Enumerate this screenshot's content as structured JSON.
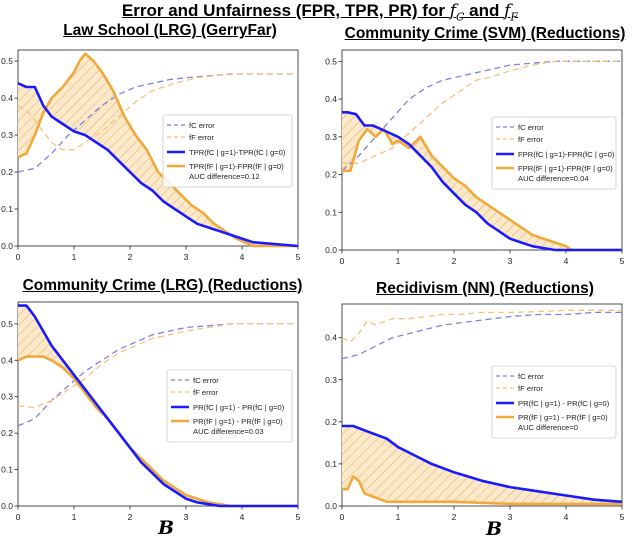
{
  "figure": {
    "title": "Error and Unfairness (FPR, TPR, PR) for",
    "title_f_c": "f",
    "title_c_sub": "C",
    "title_and": "and",
    "title_f_f": "f",
    "title_f_sub": "F",
    "xvar_label": "B"
  },
  "colors": {
    "blue": "#1a1aff",
    "blue_dashed": "#8080e0",
    "orange": "#f0a93a",
    "orange_dashed": "#f5c27a",
    "fill": "#fde8c8"
  },
  "chart_data": [
    {
      "type": "line",
      "title": "Law School (LRG) (GerryFar)",
      "xlim": [
        0,
        5
      ],
      "ylim": [
        0,
        0.53
      ],
      "xticks": [
        "0",
        "1",
        "2",
        "3",
        "4",
        "5"
      ],
      "yticks": [
        "0.0",
        "0.1",
        "0.2",
        "0.3",
        "0.4",
        "0.5"
      ],
      "ytick_values": [
        0,
        0.1,
        0.2,
        0.3,
        0.4,
        0.5
      ],
      "legend": [
        "fC error",
        "fF error",
        "TPR(fC | g=1)-TPR(fC | g=0)",
        "TPR(fF | g=1)-FPR(fF | g=0)"
      ],
      "auc_text": "AUC difference=0.12",
      "series": [
        {
          "name": "fC error",
          "style": "blue_dashed",
          "x": [
            0,
            0.3,
            0.6,
            0.9,
            1.2,
            1.5,
            1.8,
            2.1,
            2.4,
            2.7,
            3.0,
            3.4,
            3.8,
            4.2,
            5.0
          ],
          "y": [
            0.2,
            0.21,
            0.25,
            0.3,
            0.34,
            0.38,
            0.41,
            0.43,
            0.44,
            0.45,
            0.455,
            0.46,
            0.465,
            0.465,
            0.465
          ]
        },
        {
          "name": "fF error",
          "style": "orange_dashed",
          "x": [
            0,
            0.2,
            0.4,
            0.6,
            0.8,
            1.0,
            1.2,
            1.5,
            1.8,
            2.1,
            2.4,
            2.8,
            3.2,
            3.6,
            4.0,
            5.0
          ],
          "y": [
            0.38,
            0.36,
            0.32,
            0.28,
            0.26,
            0.26,
            0.28,
            0.31,
            0.35,
            0.39,
            0.42,
            0.44,
            0.455,
            0.462,
            0.465,
            0.465
          ]
        },
        {
          "name": "TPR(fC | g=1)-TPR(fC | g=0)",
          "style": "blue",
          "x": [
            0,
            0.15,
            0.3,
            0.45,
            0.6,
            0.8,
            1.0,
            1.2,
            1.4,
            1.6,
            1.8,
            2.0,
            2.2,
            2.4,
            2.6,
            2.8,
            3.0,
            3.2,
            3.4,
            3.6,
            3.8,
            4.0,
            4.2,
            5.0
          ],
          "y": [
            0.44,
            0.43,
            0.43,
            0.38,
            0.35,
            0.33,
            0.31,
            0.3,
            0.28,
            0.26,
            0.23,
            0.2,
            0.17,
            0.15,
            0.12,
            0.1,
            0.08,
            0.06,
            0.05,
            0.04,
            0.03,
            0.02,
            0.01,
            0.0
          ]
        },
        {
          "name": "TPR(fF | g=1)-FPR(fF | g=0)",
          "style": "orange",
          "x": [
            0,
            0.15,
            0.3,
            0.45,
            0.6,
            0.8,
            1.0,
            1.1,
            1.2,
            1.35,
            1.5,
            1.7,
            1.9,
            2.1,
            2.3,
            2.5,
            2.7,
            2.9,
            3.1,
            3.3,
            3.5,
            3.7,
            3.9,
            4.2,
            5.0
          ],
          "y": [
            0.24,
            0.25,
            0.3,
            0.36,
            0.4,
            0.43,
            0.47,
            0.5,
            0.52,
            0.5,
            0.47,
            0.42,
            0.35,
            0.3,
            0.26,
            0.2,
            0.17,
            0.14,
            0.11,
            0.09,
            0.06,
            0.04,
            0.02,
            0.0,
            0.0
          ]
        }
      ]
    },
    {
      "type": "line",
      "title": "Community Crime (SVM) (Reductions)",
      "xlim": [
        0,
        5
      ],
      "ylim": [
        0,
        0.53
      ],
      "xticks": [
        "0",
        "1",
        "2",
        "3",
        "4",
        "5"
      ],
      "yticks": [
        "0.0",
        "0.1",
        "0.2",
        "0.3",
        "0.4",
        "0.5"
      ],
      "ytick_values": [
        0,
        0.1,
        0.2,
        0.3,
        0.4,
        0.5
      ],
      "legend": [
        "fC error",
        "fF error",
        "FPR(fC | g=1)-FPR(fC | g=0)",
        "FPR(fF | g=1)-FPR(fF | g=0)"
      ],
      "auc_text": "AUC difference=0.04",
      "series": [
        {
          "name": "fC error",
          "style": "blue_dashed",
          "x": [
            0,
            0.3,
            0.6,
            0.9,
            1.2,
            1.5,
            1.8,
            2.1,
            2.4,
            2.7,
            3.0,
            3.4,
            3.8,
            4.2,
            5.0
          ],
          "y": [
            0.21,
            0.25,
            0.3,
            0.35,
            0.4,
            0.43,
            0.45,
            0.46,
            0.47,
            0.48,
            0.49,
            0.495,
            0.5,
            0.5,
            0.5
          ]
        },
        {
          "name": "fF error",
          "style": "orange_dashed",
          "x": [
            0,
            0.3,
            0.6,
            0.9,
            1.2,
            1.5,
            1.8,
            2.1,
            2.4,
            2.7,
            3.0,
            3.4,
            3.8,
            4.2,
            5.0
          ],
          "y": [
            0.23,
            0.23,
            0.25,
            0.27,
            0.31,
            0.35,
            0.39,
            0.42,
            0.45,
            0.46,
            0.475,
            0.49,
            0.5,
            0.5,
            0.5
          ]
        },
        {
          "name": "FPR(fC | g=1)-FPR(fC | g=0)",
          "style": "blue",
          "x": [
            0,
            0.1,
            0.25,
            0.4,
            0.55,
            0.7,
            0.85,
            1.0,
            1.2,
            1.4,
            1.6,
            1.8,
            2.0,
            2.2,
            2.4,
            2.6,
            2.8,
            3.0,
            3.2,
            3.4,
            3.6,
            3.8,
            4.0,
            5.0
          ],
          "y": [
            0.365,
            0.365,
            0.36,
            0.33,
            0.33,
            0.32,
            0.31,
            0.3,
            0.28,
            0.25,
            0.22,
            0.18,
            0.15,
            0.12,
            0.1,
            0.07,
            0.05,
            0.03,
            0.02,
            0.01,
            0.005,
            0.0,
            0.0,
            0.0
          ]
        },
        {
          "name": "FPR(fF | g=1)-FPR(fF | g=0)",
          "style": "orange",
          "x": [
            0,
            0.15,
            0.3,
            0.45,
            0.6,
            0.75,
            0.9,
            1.0,
            1.2,
            1.4,
            1.6,
            1.8,
            2.0,
            2.2,
            2.4,
            2.6,
            2.8,
            3.0,
            3.2,
            3.4,
            3.6,
            3.8,
            4.0,
            4.1,
            5.0
          ],
          "y": [
            0.21,
            0.21,
            0.29,
            0.32,
            0.3,
            0.32,
            0.28,
            0.29,
            0.27,
            0.3,
            0.25,
            0.22,
            0.19,
            0.17,
            0.14,
            0.12,
            0.1,
            0.08,
            0.06,
            0.04,
            0.03,
            0.02,
            0.01,
            0.0,
            0.0
          ]
        }
      ]
    },
    {
      "type": "line",
      "title": "Community Crime (LRG) (Reductions)",
      "xlim": [
        0,
        5
      ],
      "ylim": [
        0,
        0.56
      ],
      "xticks": [
        "0",
        "1",
        "2",
        "3",
        "4",
        "5"
      ],
      "yticks": [
        "0.0",
        "0.1",
        "0.2",
        "0.3",
        "0.4",
        "0.5"
      ],
      "ytick_values": [
        0,
        0.1,
        0.2,
        0.3,
        0.4,
        0.5
      ],
      "legend": [
        "fC error",
        "fF error",
        "PR(fC | g=1) - PR(fC | g=0)",
        "PR(fF | g=1) - PR(fF | g=0)"
      ],
      "auc_text": "AUC difference=0.03",
      "series": [
        {
          "name": "fC error",
          "style": "blue_dashed",
          "x": [
            0,
            0.3,
            0.6,
            0.9,
            1.2,
            1.5,
            1.8,
            2.1,
            2.4,
            2.7,
            3.0,
            3.4,
            3.8,
            4.2,
            5.0
          ],
          "y": [
            0.22,
            0.24,
            0.29,
            0.33,
            0.37,
            0.4,
            0.43,
            0.45,
            0.47,
            0.48,
            0.49,
            0.495,
            0.5,
            0.5,
            0.5
          ]
        },
        {
          "name": "fF error",
          "style": "orange_dashed",
          "x": [
            0,
            0.3,
            0.6,
            0.9,
            1.2,
            1.5,
            1.8,
            2.1,
            2.4,
            2.7,
            3.0,
            3.4,
            3.8,
            4.2,
            5.0
          ],
          "y": [
            0.275,
            0.27,
            0.29,
            0.32,
            0.35,
            0.39,
            0.42,
            0.44,
            0.46,
            0.47,
            0.48,
            0.49,
            0.5,
            0.5,
            0.5
          ]
        },
        {
          "name": "PR(fC | g=1) - PR(fC | g=0)",
          "style": "blue",
          "x": [
            0,
            0.15,
            0.3,
            0.45,
            0.6,
            0.8,
            1.0,
            1.2,
            1.4,
            1.6,
            1.8,
            2.0,
            2.2,
            2.4,
            2.6,
            2.8,
            3.0,
            3.2,
            3.4,
            3.6,
            3.8,
            4.0,
            5.0
          ],
          "y": [
            0.55,
            0.55,
            0.52,
            0.48,
            0.44,
            0.4,
            0.36,
            0.32,
            0.28,
            0.24,
            0.2,
            0.16,
            0.12,
            0.09,
            0.06,
            0.04,
            0.02,
            0.01,
            0.005,
            0.0,
            0.0,
            0.0,
            0.0
          ]
        },
        {
          "name": "PR(fF | g=1) - PR(fF | g=0)",
          "style": "orange",
          "x": [
            0,
            0.15,
            0.3,
            0.45,
            0.6,
            0.8,
            1.0,
            1.2,
            1.4,
            1.6,
            1.8,
            2.0,
            2.2,
            2.4,
            2.6,
            2.8,
            3.0,
            3.2,
            3.4,
            3.6,
            3.8,
            5.0
          ],
          "y": [
            0.4,
            0.41,
            0.41,
            0.41,
            0.4,
            0.38,
            0.35,
            0.31,
            0.27,
            0.24,
            0.2,
            0.16,
            0.13,
            0.1,
            0.07,
            0.05,
            0.03,
            0.02,
            0.01,
            0.005,
            0.0,
            0.0
          ]
        }
      ]
    },
    {
      "type": "line",
      "title": "Recidivism (NN) (Reductions)",
      "xlim": [
        0,
        5
      ],
      "ylim": [
        0,
        0.48
      ],
      "xticks": [
        "0",
        "1",
        "2",
        "3",
        "4",
        "5"
      ],
      "yticks": [
        "0.0",
        "0.1",
        "0.2",
        "0.3",
        "0.4"
      ],
      "ytick_values": [
        0,
        0.1,
        0.2,
        0.3,
        0.4
      ],
      "legend": [
        "fC error",
        "fF error",
        "PR(fC | g=1) - PR(fC | g=0)",
        "PR(fF | g=1) - PR(fF | g=0)"
      ],
      "auc_text": "AUC difference=0",
      "series": [
        {
          "name": "fC error",
          "style": "blue_dashed",
          "x": [
            0,
            0.3,
            0.6,
            0.9,
            1.2,
            1.5,
            1.8,
            2.1,
            2.4,
            2.7,
            3.0,
            3.5,
            4.0,
            4.5,
            5.0
          ],
          "y": [
            0.35,
            0.36,
            0.38,
            0.4,
            0.41,
            0.42,
            0.43,
            0.435,
            0.44,
            0.445,
            0.45,
            0.455,
            0.455,
            0.46,
            0.46
          ]
        },
        {
          "name": "fF error",
          "style": "orange_dashed",
          "x": [
            0,
            0.15,
            0.3,
            0.45,
            0.6,
            0.9,
            1.2,
            1.5,
            1.8,
            2.1,
            2.5,
            3.0,
            3.5,
            4.0,
            4.5,
            5.0
          ],
          "y": [
            0.4,
            0.39,
            0.41,
            0.44,
            0.43,
            0.445,
            0.445,
            0.45,
            0.455,
            0.455,
            0.46,
            0.46,
            0.462,
            0.465,
            0.465,
            0.465
          ]
        },
        {
          "name": "PR(fC | g=1) - PR(fC | g=0)",
          "style": "blue",
          "x": [
            0,
            0.2,
            0.4,
            0.6,
            0.8,
            1.0,
            1.3,
            1.6,
            2.0,
            2.5,
            3.0,
            3.5,
            4.0,
            4.5,
            5.0
          ],
          "y": [
            0.19,
            0.19,
            0.18,
            0.17,
            0.16,
            0.14,
            0.12,
            0.1,
            0.08,
            0.06,
            0.045,
            0.035,
            0.025,
            0.015,
            0.01
          ]
        },
        {
          "name": "PR(fF | g=1) - PR(fF | g=0)",
          "style": "orange",
          "x": [
            0,
            0.1,
            0.2,
            0.3,
            0.4,
            0.6,
            0.8,
            1.0,
            1.5,
            2.0,
            3.0,
            4.0,
            5.0
          ],
          "y": [
            0.04,
            0.04,
            0.07,
            0.06,
            0.03,
            0.02,
            0.01,
            0.01,
            0.01,
            0.01,
            0.005,
            0.005,
            0.005
          ]
        }
      ]
    }
  ]
}
